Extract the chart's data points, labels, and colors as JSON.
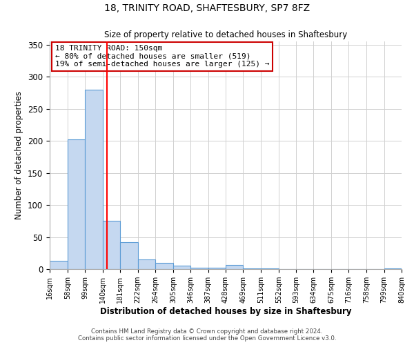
{
  "title1": "18, TRINITY ROAD, SHAFTESBURY, SP7 8FZ",
  "title2": "Size of property relative to detached houses in Shaftesbury",
  "xlabel": "Distribution of detached houses by size in Shaftesbury",
  "ylabel": "Number of detached properties",
  "bar_color": "#c5d8f0",
  "bar_edge_color": "#5b9bd5",
  "bar_edge_width": 0.8,
  "red_line_x": 150,
  "annotation_line1": "18 TRINITY ROAD: 150sqm",
  "annotation_line2": "← 80% of detached houses are smaller (519)",
  "annotation_line3": "19% of semi-detached houses are larger (125) →",
  "annotation_box_color": "#ffffff",
  "annotation_box_edge_color": "#cc0000",
  "bin_edges": [
    16,
    58,
    99,
    140,
    181,
    222,
    264,
    305,
    346,
    387,
    428,
    469,
    511,
    552,
    593,
    634,
    675,
    716,
    758,
    799,
    840
  ],
  "bin_heights": [
    13,
    202,
    280,
    75,
    42,
    15,
    10,
    5,
    2,
    2,
    6,
    1,
    1,
    0,
    0,
    0,
    0,
    0,
    0,
    1
  ],
  "ylim": [
    0,
    355
  ],
  "yticks": [
    0,
    50,
    100,
    150,
    200,
    250,
    300,
    350
  ],
  "footer1": "Contains HM Land Registry data © Crown copyright and database right 2024.",
  "footer2": "Contains public sector information licensed under the Open Government Licence v3.0.",
  "background_color": "#ffffff",
  "grid_color": "#d0d0d0"
}
